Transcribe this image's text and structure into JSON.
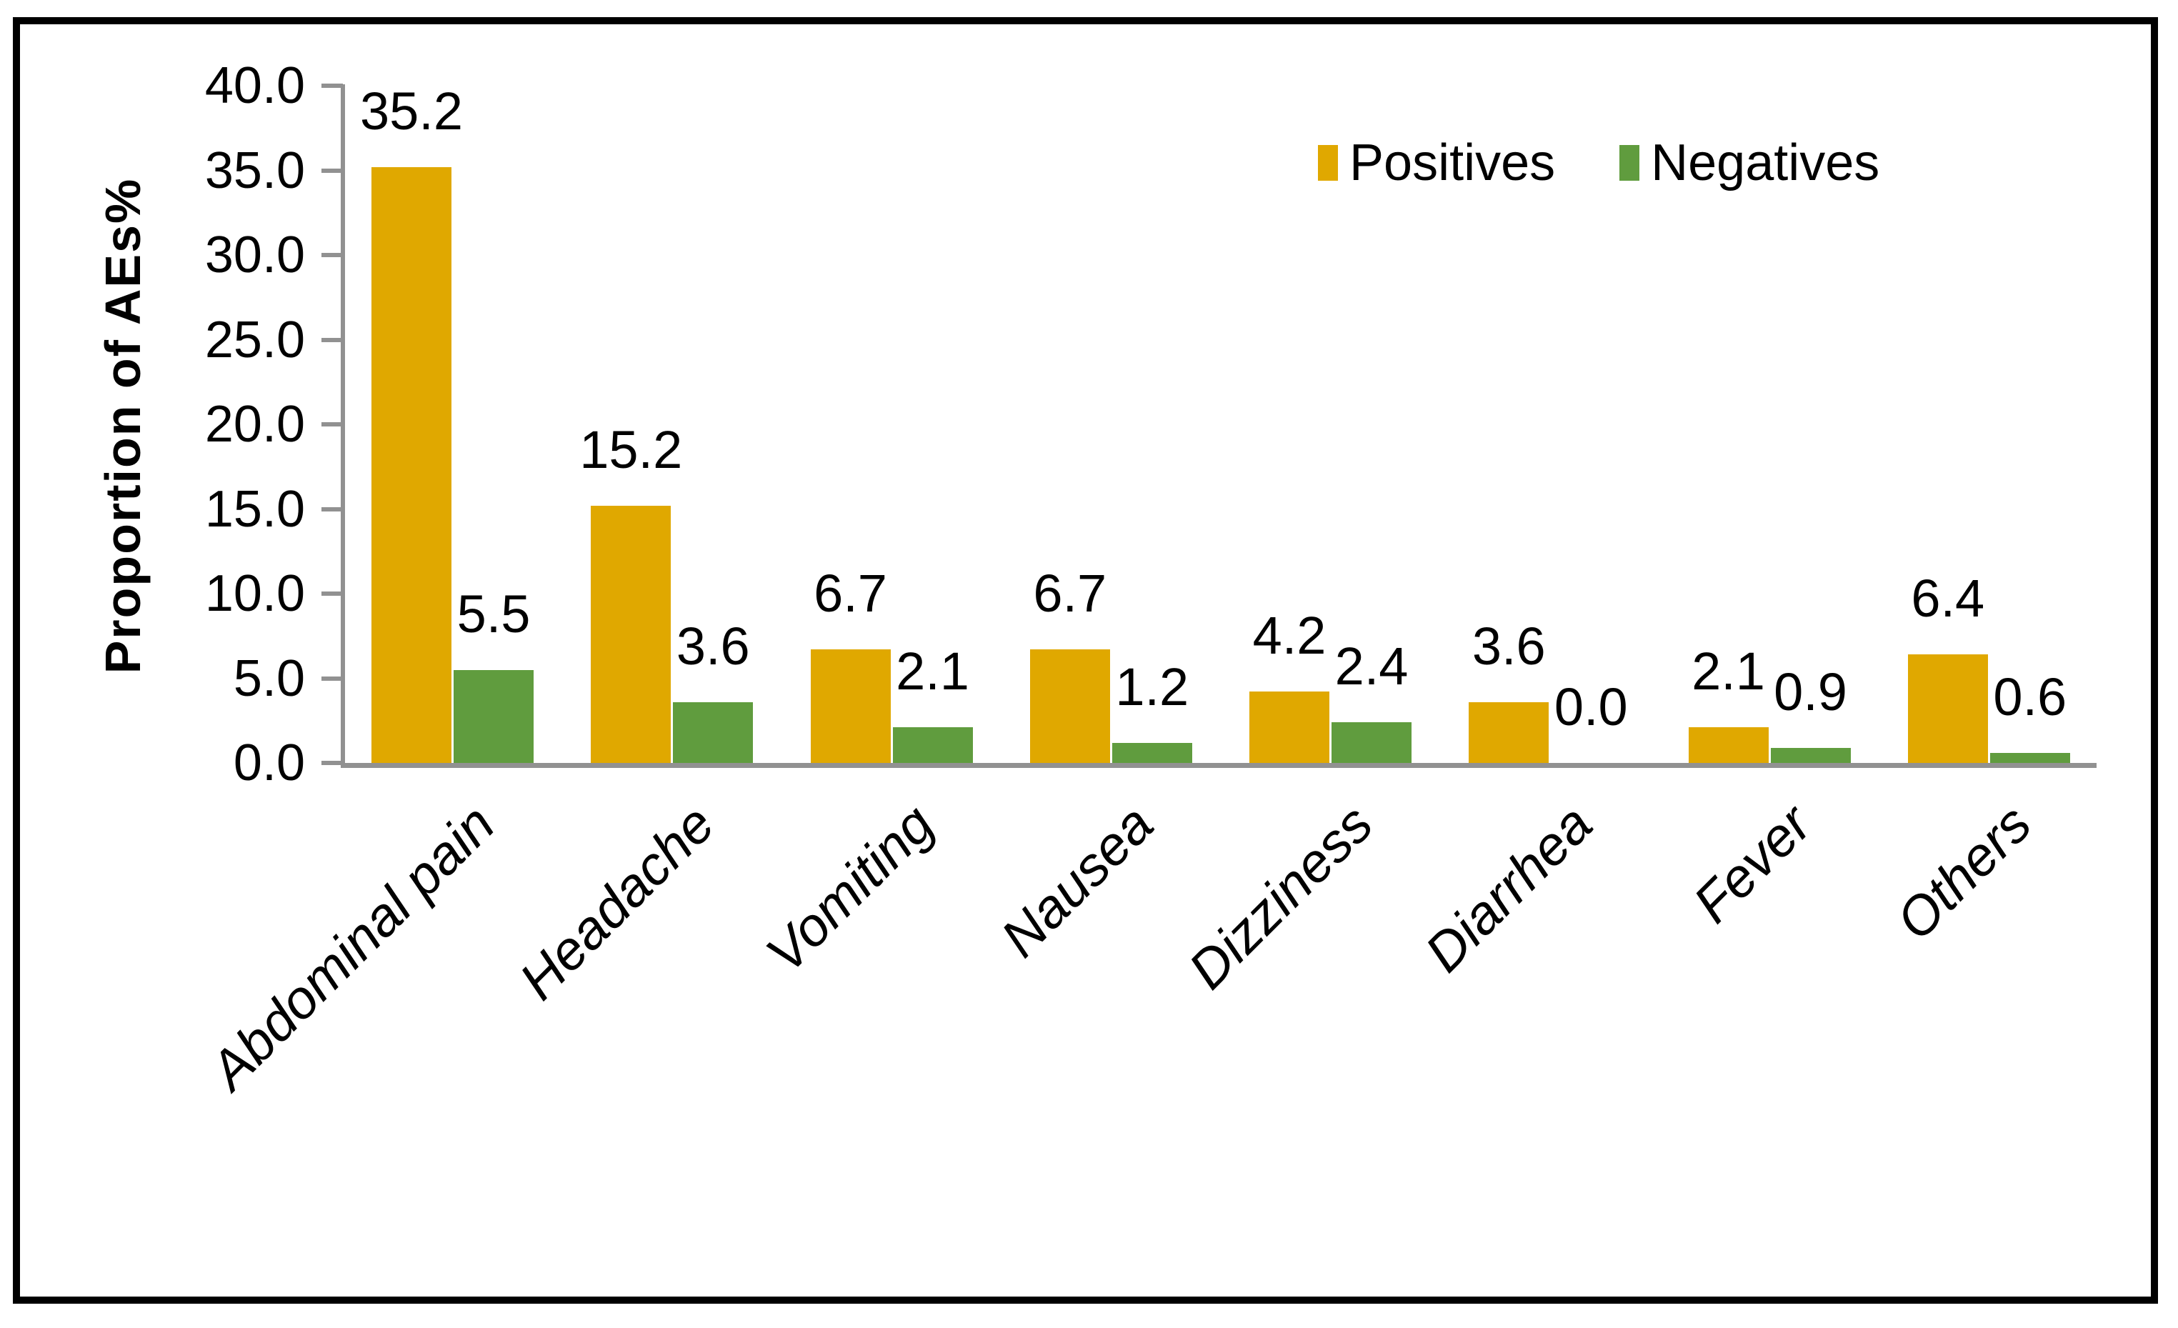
{
  "figure": {
    "background": "#FFFFFF",
    "frame_color": "#000000"
  },
  "chart_data": {
    "type": "bar",
    "title": "",
    "xlabel": "",
    "ylabel": "Proportion of AEs%",
    "categories": [
      "Abdominal pain",
      "Headache",
      "Vomiting",
      "Nausea",
      "Dizziness",
      "Diarrhea",
      "Fever",
      "Others"
    ],
    "series": [
      {
        "name": "Positives",
        "color": "#E0A800",
        "values": [
          35.2,
          15.2,
          6.7,
          6.7,
          4.2,
          3.6,
          2.1,
          6.4
        ],
        "labels": [
          "35.2",
          "15.2",
          "6.7",
          "6.7",
          "4.2",
          "3.6",
          "2.1",
          "6.4"
        ]
      },
      {
        "name": "Negatives",
        "color": "#609C3E",
        "values": [
          5.5,
          3.6,
          2.1,
          1.2,
          2.4,
          0.0,
          0.9,
          0.6
        ],
        "labels": [
          "5.5",
          "3.6",
          "2.1",
          "1.2",
          "2.4",
          "0.0",
          "0.9",
          "0.6"
        ]
      }
    ],
    "ylim": [
      0,
      40
    ],
    "ytick_step": 5,
    "ytick_labels": [
      "0.0",
      "5.0",
      "10.0",
      "15.0",
      "20.0",
      "25.0",
      "30.0",
      "35.0",
      "40.0"
    ],
    "axis_color": "#919191",
    "gridlines": "none",
    "legend_position": "top-right",
    "data_labels_shown": true
  }
}
